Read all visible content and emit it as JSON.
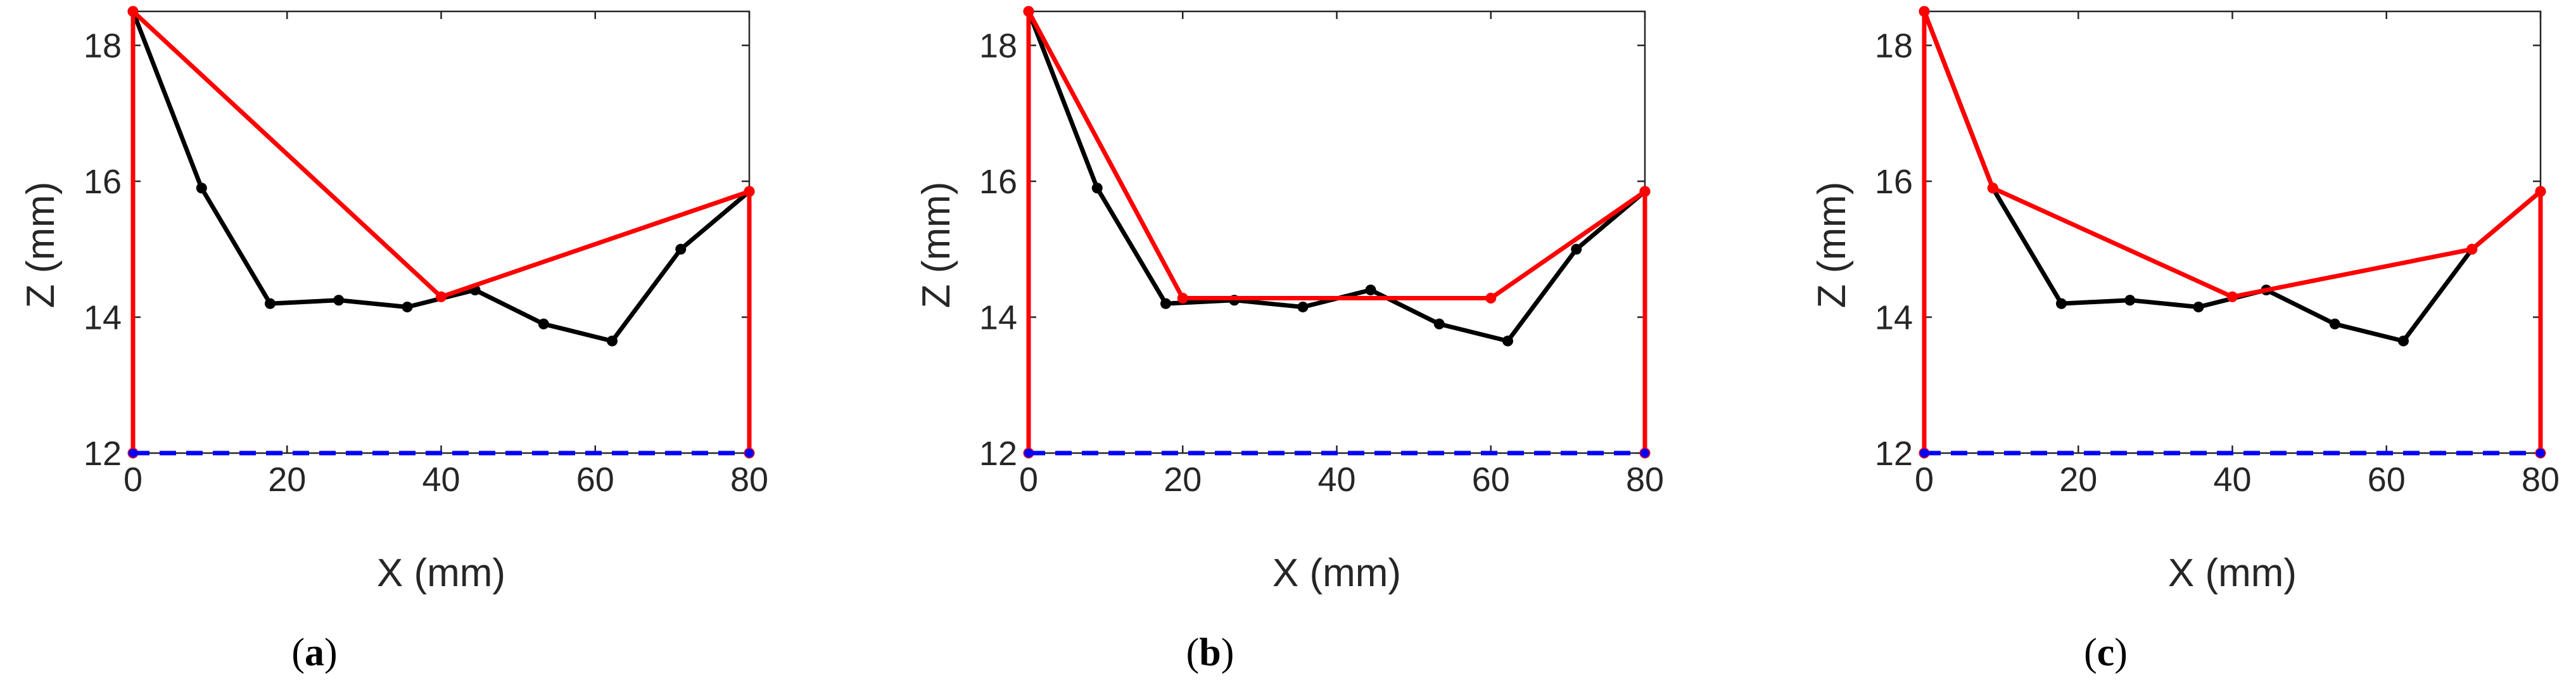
{
  "chart_data": [
    {
      "type": "line",
      "caption": "(a)",
      "caption_letter": "a",
      "xlabel": "X (mm)",
      "ylabel": "Z (mm)",
      "xlim": [
        0,
        80
      ],
      "ylim": [
        12,
        18.5
      ],
      "xticks": [
        "0",
        "20",
        "40",
        "60",
        "80"
      ],
      "yticks": [
        "12",
        "14",
        "16",
        "18"
      ],
      "grid": false,
      "series": [
        {
          "color": "#000000",
          "style": "solid-markers",
          "x": [
            0,
            8.9,
            17.8,
            26.7,
            35.6,
            44.4,
            53.3,
            62.2,
            71.1,
            80
          ],
          "y": [
            18.5,
            15.9,
            14.2,
            14.25,
            14.15,
            14.4,
            13.9,
            13.65,
            15.0,
            15.85
          ]
        },
        {
          "color": "#ff0000",
          "style": "solid",
          "x": [
            0,
            0,
            40,
            80,
            80
          ],
          "y": [
            12,
            18.5,
            14.3,
            15.85,
            12
          ]
        },
        {
          "color": "#0000ff",
          "style": "dashed",
          "x": [
            0,
            80
          ],
          "y": [
            12,
            12
          ]
        }
      ]
    },
    {
      "type": "line",
      "caption": "(b)",
      "caption_letter": "b",
      "xlabel": "X (mm)",
      "ylabel": "Z (mm)",
      "xlim": [
        0,
        80
      ],
      "ylim": [
        12,
        18.5
      ],
      "xticks": [
        "0",
        "20",
        "40",
        "60",
        "80"
      ],
      "yticks": [
        "12",
        "14",
        "16",
        "18"
      ],
      "grid": false,
      "series": [
        {
          "color": "#000000",
          "style": "solid-markers",
          "x": [
            0,
            8.9,
            17.8,
            26.7,
            35.6,
            44.4,
            53.3,
            62.2,
            71.1,
            80
          ],
          "y": [
            18.5,
            15.9,
            14.2,
            14.25,
            14.15,
            14.4,
            13.9,
            13.65,
            15.0,
            15.85
          ]
        },
        {
          "color": "#ff0000",
          "style": "solid",
          "x": [
            0,
            0,
            20,
            60,
            80,
            80
          ],
          "y": [
            12,
            18.5,
            14.28,
            14.28,
            15.85,
            12
          ]
        },
        {
          "color": "#0000ff",
          "style": "dashed",
          "x": [
            0,
            80
          ],
          "y": [
            12,
            12
          ]
        }
      ]
    },
    {
      "type": "line",
      "caption": "(c)",
      "caption_letter": "c",
      "xlabel": "X (mm)",
      "ylabel": "Z (mm)",
      "xlim": [
        0,
        80
      ],
      "ylim": [
        12,
        18.5
      ],
      "xticks": [
        "0",
        "20",
        "40",
        "60",
        "80"
      ],
      "yticks": [
        "12",
        "14",
        "16",
        "18"
      ],
      "grid": false,
      "series": [
        {
          "color": "#000000",
          "style": "solid-markers",
          "x": [
            0,
            8.9,
            17.8,
            26.7,
            35.6,
            44.4,
            53.3,
            62.2,
            71.1,
            80
          ],
          "y": [
            18.5,
            15.9,
            14.2,
            14.25,
            14.15,
            14.4,
            13.9,
            13.65,
            15.0,
            15.85
          ]
        },
        {
          "color": "#ff0000",
          "style": "solid",
          "x": [
            0,
            0,
            8.9,
            40,
            71.1,
            80,
            80
          ],
          "y": [
            12,
            18.5,
            15.9,
            14.3,
            15.0,
            15.85,
            12
          ]
        },
        {
          "color": "#0000ff",
          "style": "dashed",
          "x": [
            0,
            80
          ],
          "y": [
            12,
            12
          ]
        }
      ]
    }
  ]
}
